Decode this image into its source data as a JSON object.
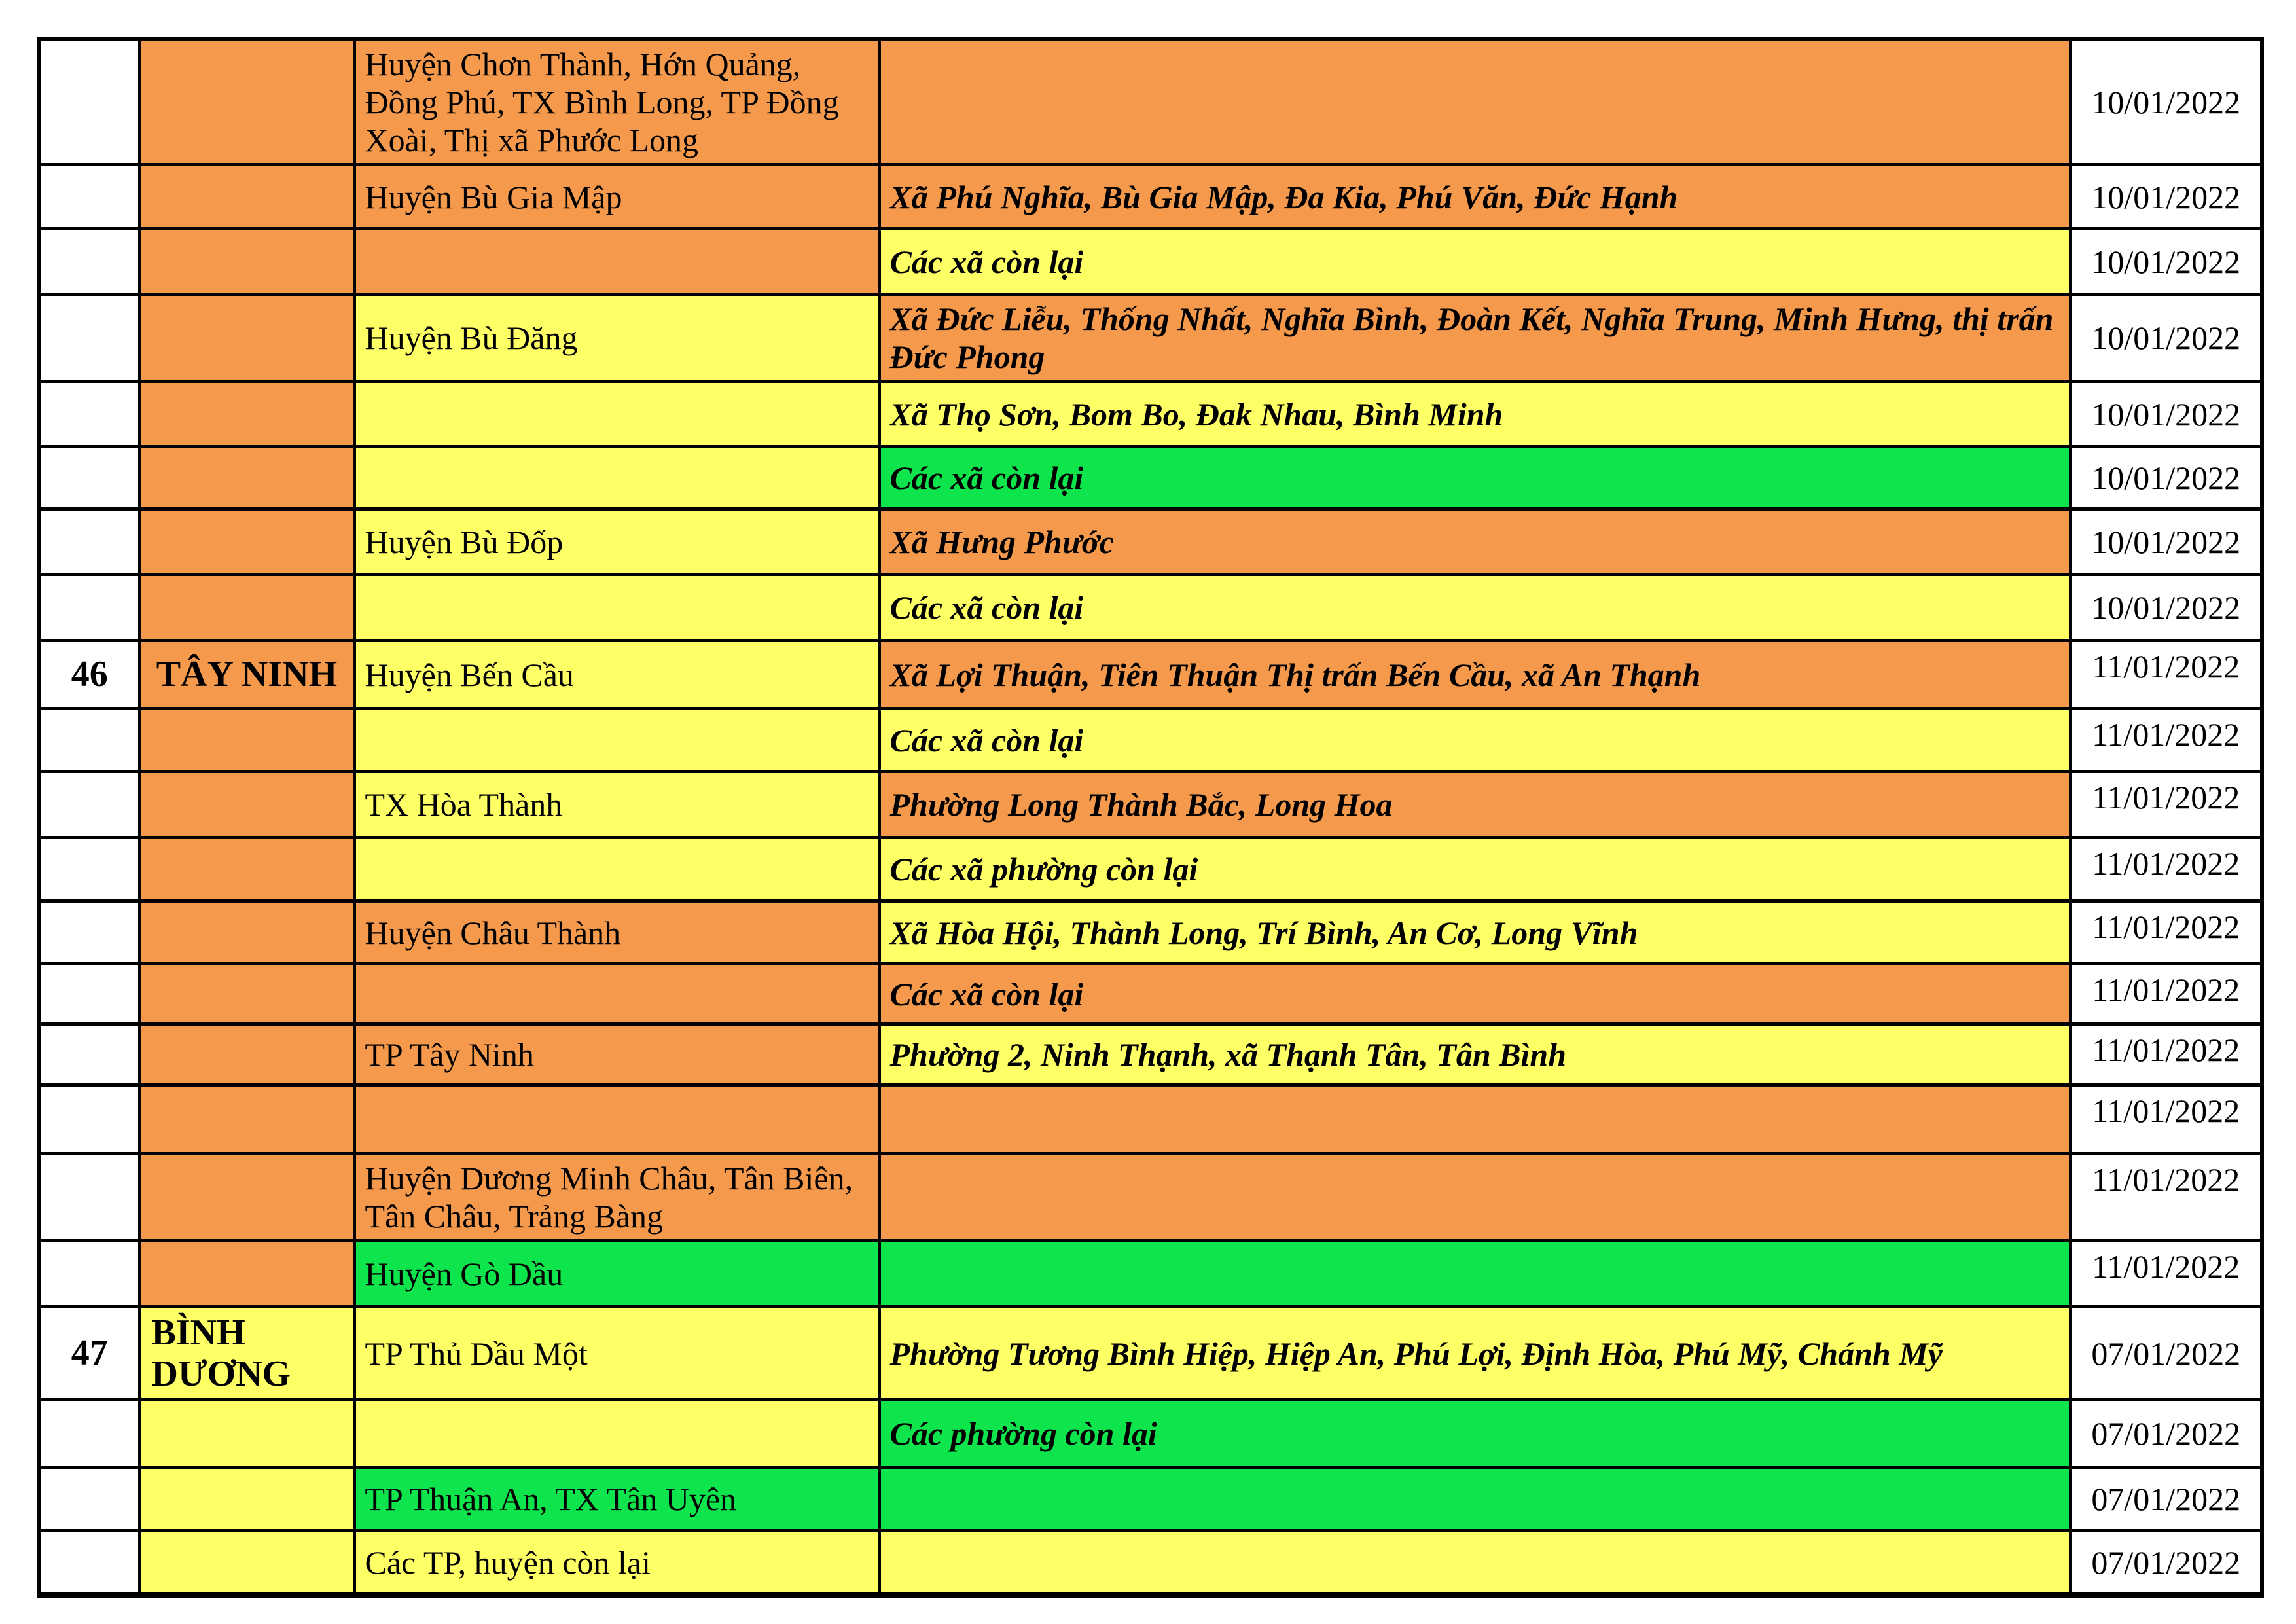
{
  "document": {
    "description": "Vietnamese COVID-19 risk-level table fragment: provinces, districts, communes and assessment dates, color-coded by risk level",
    "page_background": "#FFFFFF"
  },
  "colors": {
    "orange": "#F5994C",
    "yellow": "#FFFF66",
    "green": "#0EE44C",
    "white": "#FFFFFF",
    "border": "#000000"
  },
  "rows": [
    {
      "no": "",
      "province": "",
      "province_bg": "orange",
      "district": "Huyện Chơn Thành, Hớn Quảng, Đồng Phú, TX Bình Long, TP Đồng Xoài, Thị xã Phước Long",
      "district_bg": "orange",
      "commune": "",
      "commune_bg": "orange",
      "date": "10/01/2022",
      "date_valign": "middle",
      "height": 175
    },
    {
      "no": "",
      "province": "",
      "province_bg": "orange",
      "district": "Huyện Bù Gia Mập",
      "district_bg": "orange",
      "commune": "Xã Phú Nghĩa, Bù Gia Mập, Đa Kia, Phú Văn, Đức Hạnh",
      "commune_bg": "orange",
      "date": "10/01/2022",
      "date_valign": "middle",
      "height": 98
    },
    {
      "no": "",
      "province": "",
      "province_bg": "orange",
      "district": "",
      "district_bg": "orange",
      "commune": "Các xã còn lại",
      "commune_bg": "yellow",
      "date": "10/01/2022",
      "date_valign": "middle",
      "height": 100
    },
    {
      "no": "",
      "province": "",
      "province_bg": "orange",
      "district": "Huyện Bù Đăng",
      "district_bg": "yellow",
      "commune": "Xã Đức Liễu, Thống Nhất, Nghĩa Bình, Đoàn Kết, Nghĩa Trung, Minh Hưng, thị trấn Đức Phong",
      "commune_bg": "orange",
      "date": "10/01/2022",
      "date_valign": "middle",
      "height": 113
    },
    {
      "no": "",
      "province": "",
      "province_bg": "orange",
      "district": "",
      "district_bg": "yellow",
      "commune": "Xã Thọ Sơn, Bom Bo, Đak Nhau, Bình Minh",
      "commune_bg": "yellow",
      "date": "10/01/2022",
      "date_valign": "middle",
      "height": 100
    },
    {
      "no": "",
      "province": "",
      "province_bg": "orange",
      "district": "",
      "district_bg": "yellow",
      "commune": "Các xã còn lại",
      "commune_bg": "green",
      "date": "10/01/2022",
      "date_valign": "middle",
      "height": 95
    },
    {
      "no": "",
      "province": "",
      "province_bg": "orange",
      "district": "Huyện Bù Đốp",
      "district_bg": "yellow",
      "commune": "Xã Hưng Phước",
      "commune_bg": "orange",
      "date": "10/01/2022",
      "date_valign": "middle",
      "height": 100
    },
    {
      "no": "",
      "province": "",
      "province_bg": "orange",
      "district": "",
      "district_bg": "yellow",
      "commune": "Các xã còn lại",
      "commune_bg": "yellow",
      "date": "10/01/2022",
      "date_valign": "middle",
      "height": 101
    },
    {
      "no": "46",
      "province": "TÂY NINH",
      "province_bg": "orange",
      "district": "Huyện Bến Cầu",
      "district_bg": "yellow",
      "commune": "Xã Lợi Thuận, Tiên Thuận Thị trấn Bến Cầu, xã An Thạnh",
      "commune_bg": "orange",
      "date": "11/01/2022",
      "date_valign": "top",
      "height": 104
    },
    {
      "no": "",
      "province": "",
      "province_bg": "orange",
      "district": "",
      "district_bg": "yellow",
      "commune": "Các xã còn lại",
      "commune_bg": "yellow",
      "date": "11/01/2022",
      "date_valign": "top",
      "height": 96
    },
    {
      "no": "",
      "province": "",
      "province_bg": "orange",
      "district": "TX Hòa Thành",
      "district_bg": "yellow",
      "commune": "Phường Long Thành Bắc, Long Hoa",
      "commune_bg": "orange",
      "date": "11/01/2022",
      "date_valign": "top",
      "height": 101
    },
    {
      "no": "",
      "province": "",
      "province_bg": "orange",
      "district": "",
      "district_bg": "yellow",
      "commune": "Các xã phường còn lại",
      "commune_bg": "yellow",
      "date": "11/01/2022",
      "date_valign": "top",
      "height": 97
    },
    {
      "no": "",
      "province": "",
      "province_bg": "orange",
      "district": "Huyện Châu Thành",
      "district_bg": "orange",
      "commune": "Xã Hòa Hội, Thành Long, Trí Bình, An Cơ, Long Vĩnh",
      "commune_bg": "yellow",
      "date": "11/01/2022",
      "date_valign": "top",
      "height": 96
    },
    {
      "no": "",
      "province": "",
      "province_bg": "orange",
      "district": "",
      "district_bg": "orange",
      "commune": "Các xã còn lại",
      "commune_bg": "orange",
      "date": "11/01/2022",
      "date_valign": "top",
      "height": 92
    },
    {
      "no": "",
      "province": "",
      "province_bg": "orange",
      "district": "TP Tây Ninh",
      "district_bg": "orange",
      "commune": "Phường 2, Ninh Thạnh, xã Thạnh Tân, Tân Bình",
      "commune_bg": "yellow",
      "date": "11/01/2022",
      "date_valign": "top",
      "height": 93
    },
    {
      "no": "",
      "province": "",
      "province_bg": "orange",
      "district": "",
      "district_bg": "orange",
      "commune": "",
      "commune_bg": "orange",
      "date": "11/01/2022",
      "date_valign": "top",
      "height": 105
    },
    {
      "no": "",
      "province": "",
      "province_bg": "orange",
      "district": "Huyện Dương Minh Châu, Tân Biên, Tân Châu, Trảng Bàng",
      "district_bg": "orange",
      "commune": "",
      "commune_bg": "orange",
      "date": "11/01/2022",
      "date_valign": "top",
      "height": 115
    },
    {
      "no": "",
      "province": "",
      "province_bg": "orange",
      "district": "Huyện Gò Dầu",
      "district_bg": "green",
      "commune": "",
      "commune_bg": "green",
      "date": "11/01/2022",
      "date_valign": "top",
      "height": 101
    },
    {
      "no": "47",
      "province": "BÌNH DƯƠNG",
      "province_bg": "yellow",
      "district": "TP Thủ Dầu Một",
      "district_bg": "yellow",
      "commune": "Phường Tương Bình Hiệp, Hiệp An, Phú Lợi, Định Hòa, Phú Mỹ, Chánh Mỹ",
      "commune_bg": "yellow",
      "date": "07/01/2022",
      "date_valign": "middle",
      "height": 118
    },
    {
      "no": "",
      "province": "",
      "province_bg": "yellow",
      "district": "",
      "district_bg": "yellow",
      "commune": "Các phường còn lại",
      "commune_bg": "green",
      "date": "07/01/2022",
      "date_valign": "middle",
      "height": 103
    },
    {
      "no": "",
      "province": "",
      "province_bg": "yellow",
      "district": "TP Thuận An, TX Tân Uyên",
      "district_bg": "green",
      "commune": "",
      "commune_bg": "green",
      "date": "07/01/2022",
      "date_valign": "middle",
      "height": 97
    },
    {
      "no": "",
      "province": "",
      "province_bg": "yellow",
      "district": "Các TP, huyện còn lại",
      "district_bg": "yellow",
      "commune": "",
      "commune_bg": "yellow",
      "date": "07/01/2022",
      "date_valign": "middle",
      "height": 98
    }
  ]
}
